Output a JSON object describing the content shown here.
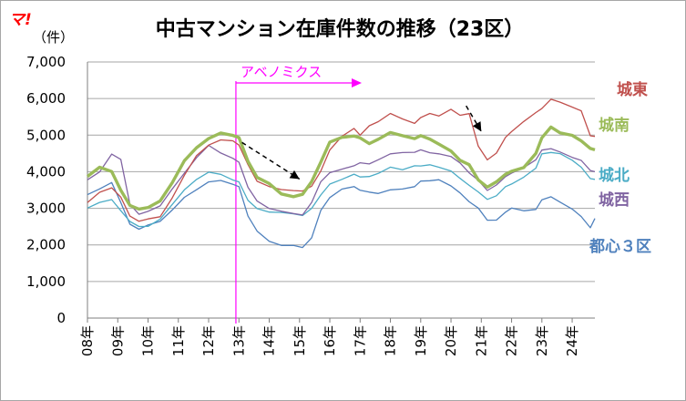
{
  "logo": "マ!",
  "chart_data": {
    "type": "line",
    "title": "中古マンション在庫件数の推移（23区）",
    "unit": "（件）",
    "ylim": [
      0,
      7000
    ],
    "yticks": [
      "0",
      "1,000",
      "2,000",
      "3,000",
      "4,000",
      "5,000",
      "6,000",
      "7,000"
    ],
    "ytick_values": [
      0,
      1000,
      2000,
      3000,
      4000,
      5000,
      6000,
      7000
    ],
    "xticks": [
      "08年",
      "09年",
      "10年",
      "11年",
      "12年",
      "13年",
      "14年",
      "15年",
      "16年",
      "17年",
      "18年",
      "19年",
      "20年",
      "21年",
      "22年",
      "23年",
      "24年"
    ],
    "xrange": [
      2008.0,
      2024.75
    ],
    "grid": "horizontal",
    "annotation": {
      "label": "アベノミクス",
      "x": 2012.9,
      "color": "#ff00ff"
    },
    "trend_arrows": [
      {
        "from": [
          2013.1,
          4800
        ],
        "to": [
          2015.0,
          3800
        ]
      },
      {
        "from": [
          2020.5,
          5800
        ],
        "to": [
          2021.0,
          5100
        ]
      }
    ],
    "series": [
      {
        "name": "城東",
        "color": "#c0504d",
        "width": 1.3,
        "x": [
          2008.0,
          2008.4,
          2008.8,
          2009.1,
          2009.4,
          2009.7,
          2010.0,
          2010.4,
          2010.8,
          2011.2,
          2011.6,
          2012.0,
          2012.4,
          2012.8,
          2013.0,
          2013.3,
          2013.6,
          2014.0,
          2014.4,
          2014.8,
          2015.1,
          2015.4,
          2015.7,
          2016.0,
          2016.4,
          2016.8,
          2017.0,
          2017.3,
          2017.6,
          2018.0,
          2018.4,
          2018.8,
          2019.0,
          2019.3,
          2019.6,
          2020.0,
          2020.3,
          2020.6,
          2020.9,
          2021.2,
          2021.5,
          2021.8,
          2022.0,
          2022.4,
          2022.8,
          2023.0,
          2023.3,
          2023.6,
          2024.0,
          2024.3,
          2024.6,
          2024.75
        ],
        "y": [
          3200,
          3400,
          3600,
          3300,
          2800,
          2650,
          2700,
          2800,
          3300,
          3900,
          4400,
          4700,
          4900,
          4800,
          4700,
          4200,
          3700,
          3600,
          3500,
          3500,
          3450,
          3600,
          4000,
          4600,
          5000,
          5200,
          5000,
          5300,
          5400,
          5600,
          5400,
          5300,
          5500,
          5600,
          5550,
          5700,
          5500,
          5550,
          4700,
          4300,
          4500,
          4900,
          5100,
          5400,
          5600,
          5700,
          6000,
          5900,
          5800,
          5700,
          5000,
          5000
        ]
      },
      {
        "name": "城南",
        "color": "#9bbb59",
        "width": 3.4,
        "x": [
          2008.0,
          2008.4,
          2008.8,
          2009.1,
          2009.4,
          2009.7,
          2010.0,
          2010.4,
          2010.8,
          2011.2,
          2011.6,
          2012.0,
          2012.4,
          2012.8,
          2013.0,
          2013.3,
          2013.6,
          2014.0,
          2014.4,
          2014.8,
          2015.1,
          2015.4,
          2015.7,
          2016.0,
          2016.4,
          2016.8,
          2017.0,
          2017.3,
          2017.6,
          2018.0,
          2018.4,
          2018.8,
          2019.0,
          2019.3,
          2019.6,
          2020.0,
          2020.3,
          2020.6,
          2020.9,
          2021.2,
          2021.5,
          2021.8,
          2022.0,
          2022.4,
          2022.8,
          2023.0,
          2023.3,
          2023.6,
          2024.0,
          2024.3,
          2024.6,
          2024.75
        ],
        "y": [
          3900,
          4100,
          4000,
          3500,
          3100,
          2950,
          3000,
          3200,
          3700,
          4300,
          4700,
          4900,
          5050,
          5000,
          4900,
          4300,
          3850,
          3700,
          3350,
          3300,
          3350,
          3700,
          4300,
          4800,
          4900,
          5000,
          4900,
          4800,
          4850,
          5100,
          5000,
          4900,
          5000,
          4900,
          4750,
          4600,
          4300,
          4150,
          3800,
          3600,
          3700,
          3900,
          4000,
          4150,
          4500,
          4900,
          5200,
          5100,
          5000,
          4800,
          4600,
          4600
        ]
      },
      {
        "name": "城北",
        "color": "#4bacc6",
        "width": 1.3,
        "x": [
          2008.0,
          2008.4,
          2008.8,
          2009.1,
          2009.4,
          2009.7,
          2010.0,
          2010.4,
          2010.8,
          2011.2,
          2011.6,
          2012.0,
          2012.4,
          2012.8,
          2013.0,
          2013.3,
          2013.6,
          2014.0,
          2014.4,
          2014.8,
          2015.1,
          2015.4,
          2015.7,
          2016.0,
          2016.4,
          2016.8,
          2017.0,
          2017.3,
          2017.6,
          2018.0,
          2018.4,
          2018.8,
          2019.0,
          2019.3,
          2019.6,
          2020.0,
          2020.3,
          2020.6,
          2020.9,
          2021.2,
          2021.5,
          2021.8,
          2022.0,
          2022.4,
          2022.8,
          2023.0,
          2023.3,
          2023.6,
          2024.0,
          2024.3,
          2024.6,
          2024.75
        ],
        "y": [
          3050,
          3200,
          3250,
          2950,
          2600,
          2500,
          2500,
          2700,
          3100,
          3500,
          3800,
          3950,
          3900,
          3800,
          3700,
          3200,
          2950,
          2900,
          2850,
          2850,
          2800,
          3000,
          3400,
          3700,
          3800,
          3900,
          3850,
          3900,
          3950,
          4100,
          4100,
          4150,
          4200,
          4200,
          4150,
          4000,
          3800,
          3600,
          3450,
          3250,
          3350,
          3600,
          3700,
          3850,
          4100,
          4450,
          4550,
          4450,
          4300,
          4100,
          3800,
          3800
        ]
      },
      {
        "name": "城西",
        "color": "#8064a2",
        "width": 1.3,
        "x": [
          2008.0,
          2008.4,
          2008.8,
          2009.1,
          2009.4,
          2009.7,
          2010.0,
          2010.4,
          2010.8,
          2011.2,
          2011.6,
          2012.0,
          2012.4,
          2012.8,
          2013.0,
          2013.3,
          2013.6,
          2014.0,
          2014.4,
          2014.8,
          2015.1,
          2015.4,
          2015.7,
          2016.0,
          2016.4,
          2016.8,
          2017.0,
          2017.3,
          2017.6,
          2018.0,
          2018.4,
          2018.8,
          2019.0,
          2019.3,
          2019.6,
          2020.0,
          2020.3,
          2020.6,
          2020.9,
          2021.2,
          2021.5,
          2021.8,
          2022.0,
          2022.4,
          2022.8,
          2023.0,
          2023.3,
          2023.6,
          2024.0,
          2024.3,
          2024.6,
          2024.75
        ],
        "y": [
          3800,
          4000,
          4500,
          4300,
          3100,
          2800,
          2900,
          3100,
          3500,
          4000,
          4400,
          4700,
          4500,
          4400,
          4300,
          3600,
          3200,
          3000,
          2950,
          2900,
          2850,
          3150,
          3700,
          4000,
          4100,
          4200,
          4200,
          4250,
          4300,
          4500,
          4500,
          4500,
          4600,
          4550,
          4500,
          4400,
          4200,
          4000,
          3750,
          3500,
          3650,
          3850,
          4000,
          4150,
          4350,
          4600,
          4650,
          4550,
          4400,
          4300,
          4050,
          4000
        ]
      },
      {
        "name": "都心３区",
        "color": "#4f81bd",
        "width": 1.3,
        "x": [
          2008.0,
          2008.4,
          2008.8,
          2009.1,
          2009.4,
          2009.7,
          2010.0,
          2010.4,
          2010.8,
          2011.2,
          2011.6,
          2012.0,
          2012.4,
          2012.8,
          2013.0,
          2013.3,
          2013.6,
          2014.0,
          2014.4,
          2014.8,
          2015.1,
          2015.4,
          2015.7,
          2016.0,
          2016.4,
          2016.8,
          2017.0,
          2017.3,
          2017.6,
          2018.0,
          2018.4,
          2018.8,
          2019.0,
          2019.3,
          2019.6,
          2020.0,
          2020.3,
          2020.6,
          2020.9,
          2021.2,
          2021.5,
          2021.8,
          2022.0,
          2022.4,
          2022.8,
          2023.0,
          2023.3,
          2023.6,
          2024.0,
          2024.3,
          2024.6,
          2024.75
        ],
        "y": [
          3400,
          3500,
          3700,
          3200,
          2600,
          2450,
          2500,
          2650,
          3000,
          3300,
          3500,
          3700,
          3750,
          3700,
          3600,
          2800,
          2400,
          2100,
          2000,
          1950,
          1900,
          2200,
          2900,
          3300,
          3500,
          3600,
          3450,
          3450,
          3400,
          3500,
          3550,
          3600,
          3700,
          3800,
          3750,
          3600,
          3400,
          3200,
          3000,
          2700,
          2650,
          2900,
          3000,
          2950,
          3000,
          3200,
          3300,
          3150,
          3000,
          2800,
          2500,
          2700
        ]
      }
    ]
  }
}
